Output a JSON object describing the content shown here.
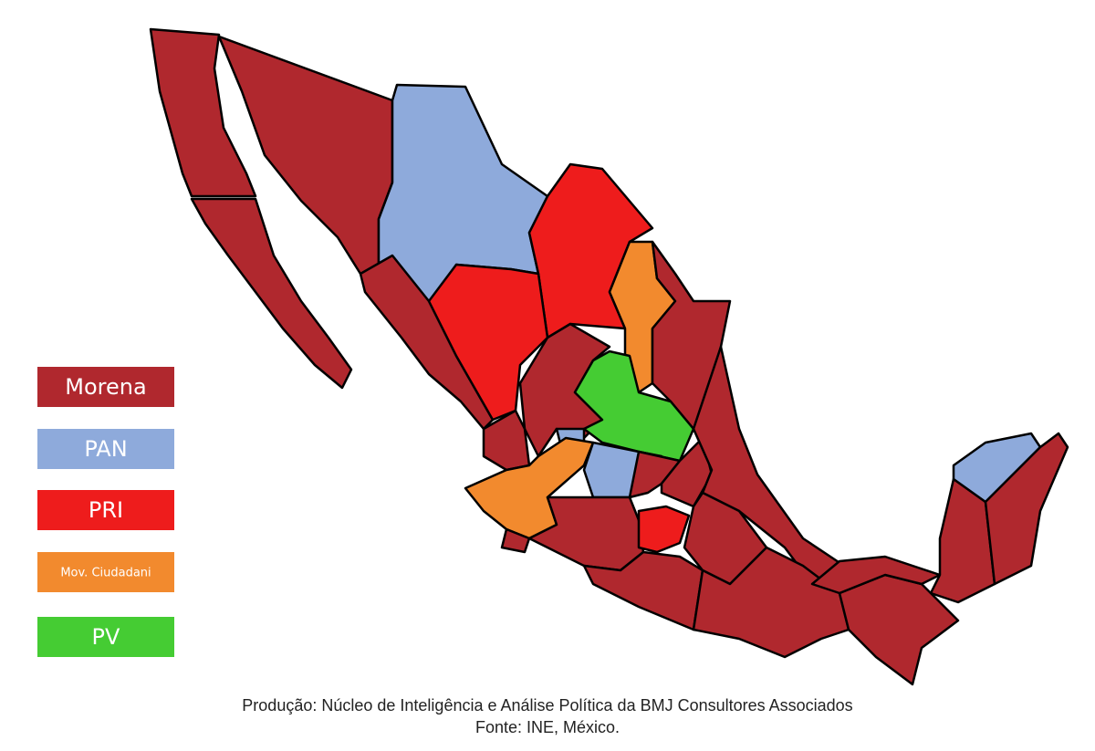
{
  "legend": [
    {
      "label": "Morena",
      "color": "#b0282e"
    },
    {
      "label": "PAN",
      "color": "#8eaadb"
    },
    {
      "label": "PRI",
      "color": "#ee1c1c"
    },
    {
      "label": "Mov. Ciudadani",
      "color": "#f28a2e"
    },
    {
      "label": "PV",
      "color": "#45cc33"
    }
  ],
  "footer": {
    "production": "Produção: Núcleo de Inteligência e Análise Política da BMJ Consultores Associados",
    "source": "Fonte: INE, México."
  }
}
